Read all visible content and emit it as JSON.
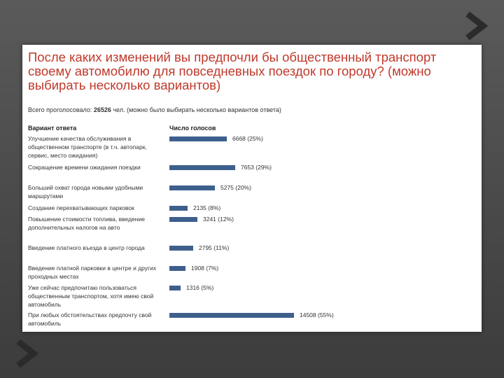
{
  "slide": {
    "title": "После каких изменений вы предпочли бы общественный транспорт своему автомобилю для повседневных поездок по городу? (можно выбирать несколько вариантов)",
    "total_label": "Всего проголосовало:",
    "total_value": "26526",
    "total_suffix": "чел. (можно было выбирать несколько вариантов ответа)"
  },
  "chart_data": {
    "type": "bar",
    "orientation": "horizontal",
    "column_headers": [
      "Вариант ответа",
      "Число голосов"
    ],
    "categories": [
      "Улучшение качества обслуживания в общественном транспорте (в т.ч. автопарк, сервис, место ожидания)",
      "Сокращение времени ожидания поездки",
      "Больший охват города новыми удобными маршрутами",
      "Создание перехватывающих парковок",
      "Повышение стоимости топлива, введение дополнительных налогов на авто",
      "Введение платного въезда в центр города",
      "Введение платной парковки в центре и других проходных местах",
      "Уже сейчас предпочитаю пользоваться общественным транспортом, хотя имею свой автомобиль",
      "При любых обстоятельствах предпочту свой автомобиль"
    ],
    "values": [
      6668,
      7653,
      5275,
      2135,
      3241,
      2795,
      1908,
      1316,
      14508
    ],
    "percent_labels": [
      "25%",
      "29%",
      "20%",
      "8%",
      "12%",
      "11%",
      "7%",
      "5%",
      "55%"
    ],
    "value_labels": [
      "6668 (25%)",
      "7653 (29%)",
      "5275 (20%)",
      "2135 (8%)",
      "3241 (12%)",
      "2795 (11%)",
      "1908 (7%)",
      "1316 (5%)",
      "14508 (55%)"
    ],
    "bar_color": "#3d5f8c",
    "grid": false
  }
}
